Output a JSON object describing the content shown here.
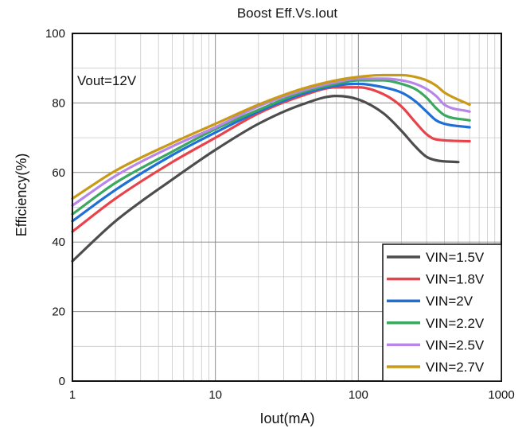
{
  "chart_data": {
    "type": "line",
    "title": "Boost Eff.Vs.Iout",
    "xlabel": "Iout(mA)",
    "ylabel": "Efficiency(%)",
    "x_scale": "log",
    "xlim": [
      1,
      1000
    ],
    "ylim": [
      0,
      100
    ],
    "x_ticks": [
      1,
      10,
      100,
      1000
    ],
    "x_tick_labels": [
      "1",
      "10",
      "100",
      "1000"
    ],
    "y_ticks": [
      0,
      20,
      40,
      60,
      80,
      100
    ],
    "y_tick_labels": [
      "0",
      "20",
      "40",
      "60",
      "80",
      "100"
    ],
    "grid": true,
    "legend_position": "bottom-right",
    "annotation": "Vout=12V",
    "series": [
      {
        "name": "VIN=1.5V",
        "color": "#4d4d4d",
        "x": [
          1,
          2,
          5,
          10,
          20,
          40,
          70,
          100,
          150,
          200,
          250,
          300,
          350,
          500
        ],
        "y": [
          34.5,
          46,
          58,
          66.5,
          74,
          79.5,
          82,
          81,
          77,
          72,
          67.5,
          64.5,
          63.5,
          63
        ]
      },
      {
        "name": "VIN=1.8V",
        "color": "#e8434a",
        "x": [
          1,
          2,
          5,
          10,
          20,
          40,
          70,
          100,
          150,
          200,
          250,
          300,
          350,
          600
        ],
        "y": [
          43,
          52.5,
          63,
          70,
          77,
          82,
          84.5,
          84.5,
          82.5,
          79,
          74.5,
          71,
          69.5,
          69
        ]
      },
      {
        "name": "VIN=2V",
        "color": "#1f6fd6",
        "x": [
          1,
          2,
          5,
          10,
          20,
          40,
          70,
          100,
          150,
          200,
          250,
          300,
          350,
          400,
          600
        ],
        "y": [
          46,
          55,
          65,
          71.5,
          77.5,
          82.5,
          85,
          85.5,
          84.5,
          83,
          80.5,
          77.5,
          75,
          74,
          73
        ]
      },
      {
        "name": "VIN=2.2V",
        "color": "#3aa85e",
        "x": [
          1,
          2,
          5,
          10,
          20,
          40,
          70,
          100,
          150,
          200,
          250,
          300,
          350,
          400,
          600
        ],
        "y": [
          48,
          57,
          66,
          72.5,
          78,
          83,
          85.5,
          86.5,
          86.5,
          85.5,
          84,
          81.5,
          78.5,
          76.5,
          75
        ]
      },
      {
        "name": "VIN=2.5V",
        "color": "#b886e8",
        "x": [
          1,
          2,
          5,
          10,
          20,
          40,
          70,
          100,
          150,
          200,
          250,
          300,
          350,
          400,
          600
        ],
        "y": [
          50.5,
          59,
          67.5,
          73,
          79,
          83.5,
          86,
          87,
          87,
          86.5,
          85.5,
          84,
          82,
          79.5,
          77.5
        ]
      },
      {
        "name": "VIN=2.7V",
        "color": "#c99a16",
        "x": [
          1,
          2,
          5,
          10,
          20,
          40,
          70,
          100,
          150,
          200,
          250,
          300,
          350,
          400,
          600
        ],
        "y": [
          52.5,
          60.5,
          68.5,
          74,
          79.5,
          84,
          86.5,
          87.5,
          88,
          88,
          87.5,
          86.5,
          85,
          83,
          79.5
        ]
      }
    ]
  }
}
